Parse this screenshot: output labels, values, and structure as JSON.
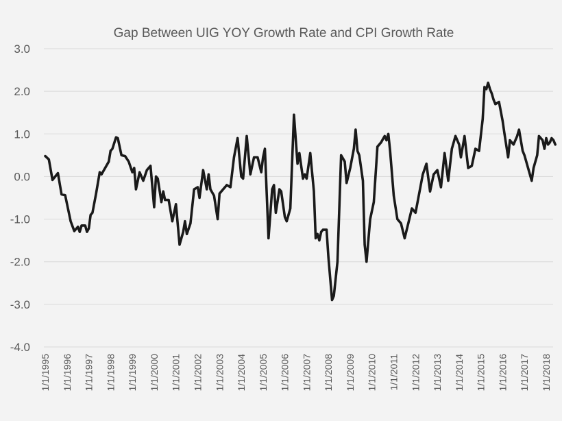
{
  "chart_data": {
    "type": "line",
    "title": "Gap Between UIG YOY Growth Rate and CPI Growth Rate",
    "xlabel": "",
    "ylabel": "",
    "ylim": [
      -4.0,
      3.0
    ],
    "yticks": [
      "-4.0",
      "-3.0",
      "-2.0",
      "-1.0",
      "0.0",
      "1.0",
      "2.0",
      "3.0"
    ],
    "yticks_values": [
      -4,
      -3,
      -2,
      -1,
      0,
      1,
      2,
      3
    ],
    "xlim": [
      "1995-01",
      "2018-06"
    ],
    "xticks": [
      "1/1/1995",
      "1/1/1996",
      "1/1/1997",
      "1/1/1998",
      "1/1/1999",
      "1/1/2000",
      "1/1/2001",
      "1/1/2002",
      "1/1/2003",
      "1/1/2004",
      "1/1/2005",
      "1/1/2006",
      "1/1/2007",
      "1/1/2008",
      "1/1/2009",
      "1/1/2010",
      "1/1/2011",
      "1/1/2012",
      "1/1/2013",
      "1/1/2014",
      "1/1/2015",
      "1/1/2016",
      "1/1/2017",
      "1/1/2018"
    ],
    "grid": true,
    "legend": "none",
    "series": [
      {
        "color": "#1a1a1a",
        "points": [
          [
            "1995-01",
            0.48
          ],
          [
            "1995-03",
            0.4
          ],
          [
            "1995-05",
            -0.08
          ],
          [
            "1995-08",
            0.08
          ],
          [
            "1995-10",
            -0.42
          ],
          [
            "1995-12",
            -0.44
          ],
          [
            "1996-03",
            -1.05
          ],
          [
            "1996-05",
            -1.28
          ],
          [
            "1996-07",
            -1.18
          ],
          [
            "1996-08",
            -1.3
          ],
          [
            "1996-09",
            -1.15
          ],
          [
            "1996-11",
            -1.15
          ],
          [
            "1996-12",
            -1.3
          ],
          [
            "1997-01",
            -1.22
          ],
          [
            "1997-02",
            -0.9
          ],
          [
            "1997-03",
            -0.85
          ],
          [
            "1997-05",
            -0.4
          ],
          [
            "1997-07",
            0.1
          ],
          [
            "1997-08",
            0.05
          ],
          [
            "1997-10",
            0.2
          ],
          [
            "1997-12",
            0.35
          ],
          [
            "1998-01",
            0.6
          ],
          [
            "1998-02",
            0.65
          ],
          [
            "1998-04",
            0.92
          ],
          [
            "1998-05",
            0.9
          ],
          [
            "1998-07",
            0.5
          ],
          [
            "1998-09",
            0.48
          ],
          [
            "1998-11",
            0.35
          ],
          [
            "1999-01",
            0.1
          ],
          [
            "1999-02",
            0.2
          ],
          [
            "1999-03",
            -0.3
          ],
          [
            "1999-05",
            0.1
          ],
          [
            "1999-07",
            -0.1
          ],
          [
            "1999-09",
            0.15
          ],
          [
            "1999-11",
            0.25
          ],
          [
            "2000-01",
            -0.72
          ],
          [
            "2000-02",
            0.0
          ],
          [
            "2000-03",
            -0.05
          ],
          [
            "2000-05",
            -0.6
          ],
          [
            "2000-06",
            -0.35
          ],
          [
            "2000-07",
            -0.55
          ],
          [
            "2000-09",
            -0.55
          ],
          [
            "2000-11",
            -1.05
          ],
          [
            "2001-01",
            -0.65
          ],
          [
            "2001-03",
            -1.6
          ],
          [
            "2001-05",
            -1.3
          ],
          [
            "2001-06",
            -1.05
          ],
          [
            "2001-07",
            -1.35
          ],
          [
            "2001-09",
            -1.1
          ],
          [
            "2001-11",
            -0.3
          ],
          [
            "2002-01",
            -0.25
          ],
          [
            "2002-02",
            -0.5
          ],
          [
            "2002-04",
            0.15
          ],
          [
            "2002-06",
            -0.3
          ],
          [
            "2002-07",
            0.05
          ],
          [
            "2002-08",
            -0.3
          ],
          [
            "2002-10",
            -0.45
          ],
          [
            "2002-12",
            -1.0
          ],
          [
            "2003-01",
            -0.4
          ],
          [
            "2003-03",
            -0.3
          ],
          [
            "2003-05",
            -0.2
          ],
          [
            "2003-07",
            -0.25
          ],
          [
            "2003-09",
            0.45
          ],
          [
            "2003-11",
            0.9
          ],
          [
            "2004-01",
            0.0
          ],
          [
            "2004-02",
            -0.05
          ],
          [
            "2004-04",
            0.95
          ],
          [
            "2004-06",
            0.05
          ],
          [
            "2004-08",
            0.45
          ],
          [
            "2004-10",
            0.45
          ],
          [
            "2004-12",
            0.1
          ],
          [
            "2005-01",
            0.45
          ],
          [
            "2005-02",
            0.65
          ],
          [
            "2005-04",
            -1.45
          ],
          [
            "2005-06",
            -0.3
          ],
          [
            "2005-07",
            -0.2
          ],
          [
            "2005-08",
            -0.85
          ],
          [
            "2005-10",
            -0.3
          ],
          [
            "2005-11",
            -0.35
          ],
          [
            "2006-01",
            -0.95
          ],
          [
            "2006-02",
            -1.05
          ],
          [
            "2006-04",
            -0.75
          ],
          [
            "2006-06",
            1.45
          ],
          [
            "2006-08",
            0.3
          ],
          [
            "2006-09",
            0.55
          ],
          [
            "2006-11",
            -0.05
          ],
          [
            "2006-12",
            0.05
          ],
          [
            "2007-01",
            -0.05
          ],
          [
            "2007-03",
            0.55
          ],
          [
            "2007-05",
            -0.35
          ],
          [
            "2007-06",
            -1.45
          ],
          [
            "2007-07",
            -1.35
          ],
          [
            "2007-08",
            -1.5
          ],
          [
            "2007-09",
            -1.3
          ],
          [
            "2007-10",
            -1.25
          ],
          [
            "2007-12",
            -1.25
          ],
          [
            "2008-01",
            -1.9
          ],
          [
            "2008-03",
            -2.9
          ],
          [
            "2008-04",
            -2.8
          ],
          [
            "2008-06",
            -2.0
          ],
          [
            "2008-08",
            0.5
          ],
          [
            "2008-10",
            0.35
          ],
          [
            "2008-11",
            -0.15
          ],
          [
            "2009-01",
            0.2
          ],
          [
            "2009-03",
            0.65
          ],
          [
            "2009-04",
            1.1
          ],
          [
            "2009-05",
            0.6
          ],
          [
            "2009-06",
            0.5
          ],
          [
            "2009-08",
            -0.1
          ],
          [
            "2009-09",
            -1.6
          ],
          [
            "2009-10",
            -2.0
          ],
          [
            "2009-12",
            -1.0
          ],
          [
            "2010-02",
            -0.6
          ],
          [
            "2010-04",
            0.7
          ],
          [
            "2010-06",
            0.8
          ],
          [
            "2010-08",
            0.95
          ],
          [
            "2010-09",
            0.85
          ],
          [
            "2010-10",
            1.0
          ],
          [
            "2010-11",
            0.6
          ],
          [
            "2011-01",
            -0.45
          ],
          [
            "2011-03",
            -1.0
          ],
          [
            "2011-05",
            -1.1
          ],
          [
            "2011-07",
            -1.45
          ],
          [
            "2011-09",
            -1.1
          ],
          [
            "2011-11",
            -0.75
          ],
          [
            "2012-01",
            -0.85
          ],
          [
            "2012-03",
            -0.4
          ],
          [
            "2012-05",
            0.05
          ],
          [
            "2012-07",
            0.3
          ],
          [
            "2012-09",
            -0.35
          ],
          [
            "2012-11",
            0.05
          ],
          [
            "2013-01",
            0.15
          ],
          [
            "2013-03",
            -0.25
          ],
          [
            "2013-05",
            0.55
          ],
          [
            "2013-07",
            -0.1
          ],
          [
            "2013-09",
            0.65
          ],
          [
            "2013-11",
            0.95
          ],
          [
            "2014-01",
            0.75
          ],
          [
            "2014-02",
            0.45
          ],
          [
            "2014-04",
            0.95
          ],
          [
            "2014-06",
            0.2
          ],
          [
            "2014-08",
            0.25
          ],
          [
            "2014-10",
            0.65
          ],
          [
            "2014-12",
            0.6
          ],
          [
            "2015-02",
            1.35
          ],
          [
            "2015-03",
            2.1
          ],
          [
            "2015-04",
            2.05
          ],
          [
            "2015-05",
            2.2
          ],
          [
            "2015-06",
            2.05
          ],
          [
            "2015-07",
            1.95
          ],
          [
            "2015-08",
            1.8
          ],
          [
            "2015-09",
            1.7
          ],
          [
            "2015-11",
            1.75
          ],
          [
            "2016-01",
            1.3
          ],
          [
            "2016-02",
            1.0
          ],
          [
            "2016-04",
            0.45
          ],
          [
            "2016-05",
            0.85
          ],
          [
            "2016-07",
            0.75
          ],
          [
            "2016-09",
            0.95
          ],
          [
            "2016-10",
            1.1
          ],
          [
            "2016-12",
            0.6
          ],
          [
            "2017-01",
            0.5
          ],
          [
            "2017-03",
            0.2
          ],
          [
            "2017-05",
            -0.1
          ],
          [
            "2017-06",
            0.2
          ],
          [
            "2017-08",
            0.5
          ],
          [
            "2017-09",
            0.95
          ],
          [
            "2017-11",
            0.85
          ],
          [
            "2017-12",
            0.65
          ],
          [
            "2018-01",
            0.9
          ],
          [
            "2018-02",
            0.75
          ],
          [
            "2018-03",
            0.8
          ],
          [
            "2018-04",
            0.9
          ],
          [
            "2018-05",
            0.85
          ],
          [
            "2018-06",
            0.75
          ]
        ]
      }
    ]
  }
}
